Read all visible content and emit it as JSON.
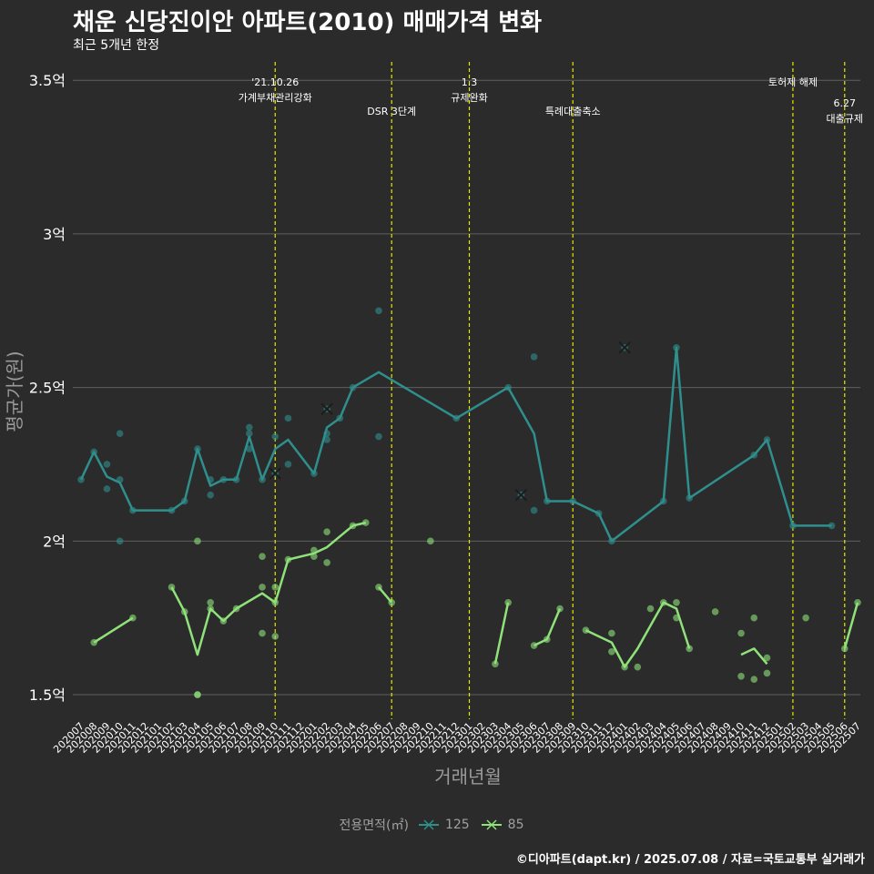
{
  "title": "채운 신당진이안 아파트(2010) 매매가격 변화",
  "subtitle": "최근 5개년 한정",
  "caption": "©디아파트(dapt.kr) / 2025.07.08 / 자료=국토교통부 실거래가",
  "legend": {
    "title": "전용면적(㎡)",
    "items": [
      {
        "label": "125",
        "color": "#2f8f8d"
      },
      {
        "label": "85",
        "color": "#8fe27a"
      }
    ]
  },
  "colors": {
    "background": "#2b2b2b",
    "grid": "#5f5f5f",
    "event_line": "#e6e600",
    "axis_text": "#ffffff",
    "axis_title": "#9a9a9a"
  },
  "chart_data": {
    "type": "line",
    "title": "채운 신당진이안 아파트(2010) 매매가격 변화",
    "xlabel": "거래년월",
    "ylabel": "평균가(원)",
    "ylim": [
      1.42,
      3.56
    ],
    "y_ticks": [
      {
        "value": 1.5,
        "label": "1.5억"
      },
      {
        "value": 2.0,
        "label": "2억"
      },
      {
        "value": 2.5,
        "label": "2.5억"
      },
      {
        "value": 3.0,
        "label": "3억"
      },
      {
        "value": 3.5,
        "label": "3.5억"
      }
    ],
    "x_categories": [
      "202007",
      "202008",
      "202009",
      "202010",
      "202011",
      "202012",
      "202101",
      "202102",
      "202103",
      "202104",
      "202105",
      "202106",
      "202107",
      "202108",
      "202109",
      "202110",
      "202111",
      "202112",
      "202201",
      "202202",
      "202203",
      "202204",
      "202205",
      "202206",
      "202207",
      "202208",
      "202209",
      "202210",
      "202211",
      "202212",
      "202301",
      "202302",
      "202303",
      "202304",
      "202305",
      "202306",
      "202307",
      "202308",
      "202309",
      "202310",
      "202311",
      "202312",
      "202401",
      "202402",
      "202403",
      "202404",
      "202405",
      "202406",
      "202407",
      "202408",
      "202409",
      "202410",
      "202411",
      "202412",
      "202501",
      "202502",
      "202503",
      "202504",
      "202505",
      "202506",
      "202507"
    ],
    "events": [
      {
        "x": "202110",
        "lines": [
          "'21.10.26",
          "가계부채관리강화"
        ],
        "level": 1
      },
      {
        "x": "202207",
        "lines": [
          "DSR 3단계"
        ],
        "level": 2
      },
      {
        "x": "202301",
        "lines": [
          "1.3",
          "규제완화"
        ],
        "level": 1
      },
      {
        "x": "202309",
        "lines": [
          "특례대출축소"
        ],
        "level": 2
      },
      {
        "x": "202502",
        "lines": [
          "토허제 해제"
        ],
        "level": 1
      },
      {
        "x": "202506",
        "lines": [
          "6.27",
          "대출규제"
        ],
        "level": 3
      }
    ],
    "series": [
      {
        "name": "125",
        "color": "#2f8f8d",
        "line": [
          [
            "202007",
            2.2
          ],
          [
            "202008",
            2.29
          ],
          [
            "202009",
            2.21
          ],
          [
            "202010",
            2.19
          ],
          [
            "202011",
            2.1
          ],
          [
            "202102",
            2.1
          ],
          [
            "202103",
            2.13
          ],
          [
            "202104",
            2.3
          ],
          [
            "202105",
            2.18
          ],
          [
            "202106",
            2.2
          ],
          [
            "202107",
            2.2
          ],
          [
            "202108",
            2.34
          ],
          [
            "202109",
            2.2
          ],
          [
            "202110",
            2.3
          ],
          [
            "202111",
            2.33
          ],
          [
            "202201",
            2.22
          ],
          [
            "202202",
            2.37
          ],
          [
            "202203",
            2.4
          ],
          [
            "202204",
            2.5
          ],
          [
            "202206",
            2.55
          ],
          [
            "202212",
            2.4
          ],
          [
            "202304",
            2.5
          ],
          [
            "202306",
            2.35
          ],
          [
            "202307",
            2.13
          ],
          [
            "202309",
            2.13
          ],
          [
            "202311",
            2.09
          ],
          [
            "202312",
            2.0
          ],
          [
            "202404",
            2.13
          ],
          [
            "202405",
            2.63
          ],
          [
            "202406",
            2.14
          ],
          [
            "202411",
            2.28
          ],
          [
            "202412",
            2.33
          ],
          [
            "202502",
            2.05
          ],
          [
            "202505",
            2.05
          ]
        ],
        "points": [
          [
            "202007",
            2.2
          ],
          [
            "202008",
            2.29
          ],
          [
            "202009",
            2.25
          ],
          [
            "202009",
            2.17
          ],
          [
            "202010",
            2.35
          ],
          [
            "202010",
            2.2
          ],
          [
            "202010",
            2.0
          ],
          [
            "202011",
            2.1
          ],
          [
            "202102",
            2.1
          ],
          [
            "202103",
            2.13
          ],
          [
            "202104",
            2.3
          ],
          [
            "202105",
            2.2
          ],
          [
            "202105",
            2.15
          ],
          [
            "202106",
            2.2
          ],
          [
            "202107",
            2.2
          ],
          [
            "202108",
            2.37
          ],
          [
            "202108",
            2.35
          ],
          [
            "202108",
            2.3
          ],
          [
            "202109",
            2.2
          ],
          [
            "202110",
            2.34
          ],
          [
            "202110",
            2.22
          ],
          [
            "202111",
            2.4
          ],
          [
            "202111",
            2.25
          ],
          [
            "202201",
            2.22
          ],
          [
            "202202",
            2.43
          ],
          [
            "202202",
            2.35
          ],
          [
            "202202",
            2.33
          ],
          [
            "202203",
            2.4
          ],
          [
            "202204",
            2.5
          ],
          [
            "202206",
            2.75
          ],
          [
            "202206",
            2.34
          ],
          [
            "202212",
            2.4
          ],
          [
            "202304",
            2.5
          ],
          [
            "202305",
            2.15
          ],
          [
            "202306",
            2.6
          ],
          [
            "202306",
            2.1
          ],
          [
            "202307",
            2.13
          ],
          [
            "202309",
            2.13
          ],
          [
            "202311",
            2.09
          ],
          [
            "202312",
            2.0
          ],
          [
            "202401",
            2.63
          ],
          [
            "202404",
            2.13
          ],
          [
            "202405",
            2.63
          ],
          [
            "202406",
            2.14
          ],
          [
            "202411",
            2.28
          ],
          [
            "202412",
            2.33
          ],
          [
            "202502",
            2.05
          ],
          [
            "202505",
            2.05
          ]
        ],
        "crosses": [
          [
            "202110",
            2.22
          ],
          [
            "202202",
            2.43
          ],
          [
            "202305",
            2.15
          ],
          [
            "202401",
            2.63
          ]
        ]
      },
      {
        "name": "85",
        "color": "#8fe27a",
        "line_segments": [
          [
            [
              "202008",
              1.67
            ],
            [
              "202011",
              1.75
            ]
          ],
          [
            [
              "202102",
              1.85
            ],
            [
              "202103",
              1.77
            ],
            [
              "202104",
              1.63
            ],
            [
              "202105",
              1.78
            ],
            [
              "202106",
              1.74
            ],
            [
              "202107",
              1.78
            ],
            [
              "202109",
              1.83
            ],
            [
              "202110",
              1.8
            ],
            [
              "202111",
              1.94
            ],
            [
              "202201",
              1.96
            ],
            [
              "202202",
              1.98
            ],
            [
              "202204",
              2.05
            ],
            [
              "202205",
              2.06
            ]
          ],
          [
            [
              "202206",
              1.85
            ],
            [
              "202207",
              1.8
            ]
          ],
          [
            [
              "202303",
              1.6
            ],
            [
              "202304",
              1.8
            ]
          ],
          [
            [
              "202306",
              1.66
            ],
            [
              "202307",
              1.68
            ],
            [
              "202308",
              1.78
            ]
          ],
          [
            [
              "202310",
              1.71
            ],
            [
              "202312",
              1.67
            ],
            [
              "202401",
              1.59
            ],
            [
              "202402",
              1.65
            ],
            [
              "202404",
              1.8
            ],
            [
              "202405",
              1.78
            ],
            [
              "202406",
              1.65
            ]
          ],
          [
            [
              "202410",
              1.63
            ],
            [
              "202411",
              1.65
            ],
            [
              "202412",
              1.6
            ]
          ],
          [
            [
              "202506",
              1.65
            ],
            [
              "202507",
              1.8
            ]
          ]
        ],
        "points": [
          [
            "202008",
            1.67
          ],
          [
            "202011",
            1.75
          ],
          [
            "202102",
            1.85
          ],
          [
            "202103",
            1.77
          ],
          [
            "202104",
            2.0
          ],
          [
            "202104",
            1.5
          ],
          [
            "202104",
            1.5
          ],
          [
            "202105",
            1.8
          ],
          [
            "202105",
            1.78
          ],
          [
            "202106",
            1.74
          ],
          [
            "202107",
            1.78
          ],
          [
            "202109",
            1.95
          ],
          [
            "202109",
            1.85
          ],
          [
            "202109",
            1.7
          ],
          [
            "202110",
            1.85
          ],
          [
            "202110",
            1.8
          ],
          [
            "202110",
            1.69
          ],
          [
            "202111",
            1.94
          ],
          [
            "202201",
            1.97
          ],
          [
            "202201",
            1.95
          ],
          [
            "202202",
            2.03
          ],
          [
            "202202",
            1.93
          ],
          [
            "202204",
            2.05
          ],
          [
            "202205",
            2.06
          ],
          [
            "202206",
            1.85
          ],
          [
            "202207",
            1.8
          ],
          [
            "202210",
            2.0
          ],
          [
            "202303",
            1.6
          ],
          [
            "202304",
            1.8
          ],
          [
            "202306",
            1.66
          ],
          [
            "202307",
            1.68
          ],
          [
            "202308",
            1.78
          ],
          [
            "202310",
            1.71
          ],
          [
            "202312",
            1.7
          ],
          [
            "202312",
            1.64
          ],
          [
            "202401",
            1.59
          ],
          [
            "202402",
            1.59
          ],
          [
            "202403",
            1.78
          ],
          [
            "202404",
            1.8
          ],
          [
            "202405",
            1.8
          ],
          [
            "202405",
            1.75
          ],
          [
            "202406",
            1.65
          ],
          [
            "202408",
            1.77
          ],
          [
            "202410",
            1.7
          ],
          [
            "202410",
            1.56
          ],
          [
            "202411",
            1.75
          ],
          [
            "202411",
            1.55
          ],
          [
            "202412",
            1.62
          ],
          [
            "202412",
            1.57
          ],
          [
            "202503",
            1.75
          ],
          [
            "202506",
            1.65
          ],
          [
            "202507",
            1.8
          ]
        ]
      }
    ]
  }
}
